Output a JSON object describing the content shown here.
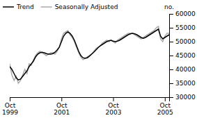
{
  "chart_data": {
    "type": "line",
    "ylabel": "no.",
    "categories": [
      "Oct\n1999",
      null,
      null,
      null,
      null,
      null,
      null,
      null,
      null,
      null,
      null,
      null,
      null,
      null,
      null,
      null,
      null,
      null,
      null,
      null,
      null,
      null,
      null,
      null,
      "Oct\n2001",
      null,
      null,
      null,
      null,
      null,
      null,
      null,
      null,
      null,
      null,
      null,
      null,
      null,
      null,
      null,
      null,
      null,
      null,
      null,
      null,
      null,
      null,
      null,
      "Oct\n2003",
      null,
      null,
      null,
      null,
      null,
      null,
      null,
      null,
      null,
      null,
      null,
      null,
      null,
      null,
      null,
      null,
      null,
      null,
      null,
      null,
      null,
      null,
      null,
      "Oct\n2005",
      null,
      null
    ],
    "series": [
      {
        "name": "Trend",
        "color": "#000000",
        "values": [
          41000,
          40000,
          38500,
          37000,
          36200,
          36500,
          37500,
          38500,
          39500,
          41000,
          42000,
          43000,
          44500,
          45500,
          46000,
          46200,
          46000,
          45700,
          45500,
          45500,
          45700,
          46200,
          47000,
          48000,
          50000,
          52000,
          53000,
          53500,
          53000,
          52000,
          50500,
          48500,
          46500,
          45000,
          44200,
          44000,
          44200,
          44800,
          45500,
          46200,
          47000,
          47800,
          48500,
          49000,
          49500,
          50000,
          50300,
          50500,
          50200,
          50000,
          50200,
          50500,
          51000,
          51500,
          52000,
          52500,
          52800,
          53000,
          52800,
          52500,
          52000,
          51500,
          51200,
          51500,
          52000,
          52500,
          53000,
          53500,
          54000,
          54500,
          52000,
          51000,
          51500,
          52000,
          52500
        ]
      },
      {
        "name": "Seasonally Adjusted",
        "color": "#aaaaaa",
        "values": [
          42000,
          38000,
          36000,
          37500,
          35000,
          36000,
          38000,
          40000,
          38500,
          42000,
          41500,
          43500,
          45000,
          46000,
          46500,
          46000,
          45500,
          45000,
          45500,
          46000,
          46000,
          45500,
          46500,
          48000,
          51000,
          53000,
          53500,
          54000,
          52500,
          51500,
          50000,
          48000,
          46000,
          44500,
          43500,
          44000,
          44500,
          45000,
          45500,
          46500,
          47500,
          48000,
          48500,
          49500,
          50000,
          50500,
          50000,
          50500,
          50000,
          49500,
          50500,
          51000,
          51500,
          52000,
          52500,
          53000,
          53000,
          53000,
          52500,
          52000,
          51500,
          51000,
          51500,
          52000,
          52500,
          53000,
          53500,
          54000,
          55000,
          55500,
          51000,
          50000,
          52000,
          53000,
          53000
        ]
      }
    ],
    "ylim": [
      30000,
      60000
    ],
    "yticks": [
      30000,
      35000,
      40000,
      45000,
      50000,
      55000,
      60000
    ],
    "legend": "top-left"
  }
}
